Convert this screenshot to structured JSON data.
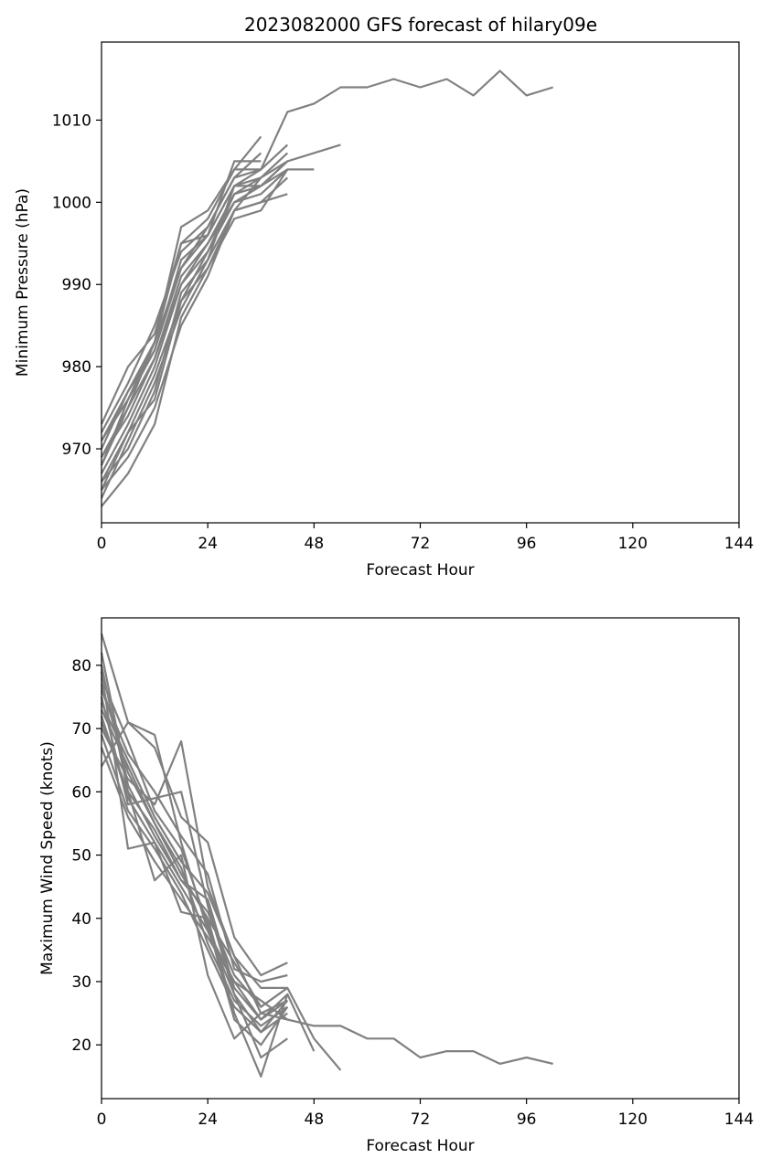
{
  "title": "2023082000 GFS forecast of hilary09e",
  "line_color": "#808080",
  "chart_data": [
    {
      "type": "line",
      "xlabel": "Forecast Hour",
      "ylabel": "Minimum Pressure (hPa)",
      "xlim": [
        0,
        144
      ],
      "ylim": [
        961,
        1019.5
      ],
      "xticks": [
        0,
        24,
        48,
        72,
        96,
        120,
        144
      ],
      "yticks": [
        970,
        980,
        990,
        1000,
        1010
      ],
      "grid": false,
      "legend": "none",
      "series": [
        {
          "x": [
            0,
            6,
            12,
            18,
            24,
            30,
            36,
            42,
            48,
            54,
            60,
            66,
            72,
            78,
            84,
            90,
            96,
            102
          ],
          "y": [
            971,
            976,
            983,
            992,
            997,
            1003,
            1004,
            1011,
            1012,
            1014,
            1014,
            1015,
            1014,
            1015,
            1013,
            1016,
            1013,
            1014
          ]
        },
        {
          "x": [
            0,
            6,
            12,
            18,
            24,
            30,
            36,
            42,
            48,
            54
          ],
          "y": [
            968,
            975,
            981,
            991,
            995,
            1001,
            1003,
            1005,
            1006,
            1007
          ]
        },
        {
          "x": [
            0,
            6,
            12,
            18,
            24,
            30,
            36,
            42,
            48
          ],
          "y": [
            965,
            972,
            979,
            988,
            994,
            1000,
            1002,
            1004,
            1004
          ]
        },
        {
          "x": [
            0,
            6,
            12,
            18,
            24,
            30,
            36
          ],
          "y": [
            969,
            975,
            983,
            997,
            999,
            1004,
            1008
          ]
        },
        {
          "x": [
            0,
            6,
            12,
            18,
            24,
            30,
            36
          ],
          "y": [
            973,
            980,
            984,
            995,
            996,
            1005,
            1005
          ]
        },
        {
          "x": [
            0,
            6,
            12,
            18,
            24,
            30,
            36,
            42
          ],
          "y": [
            963,
            967,
            973,
            986,
            992,
            998,
            999,
            1004
          ]
        },
        {
          "x": [
            0,
            6,
            12,
            18,
            24,
            30,
            36,
            42
          ],
          "y": [
            966,
            970,
            977,
            989,
            993,
            999,
            1000,
            1001
          ]
        },
        {
          "x": [
            0,
            6,
            12,
            18,
            24,
            30,
            36,
            42
          ],
          "y": [
            970,
            977,
            982,
            993,
            996,
            1002,
            1003,
            1006
          ]
        },
        {
          "x": [
            0,
            6,
            12,
            18,
            24,
            30,
            36,
            42
          ],
          "y": [
            967,
            973,
            980,
            990,
            994,
            1001,
            1002,
            1005
          ]
        },
        {
          "x": [
            0,
            6,
            12,
            18,
            24,
            30,
            36,
            42
          ],
          "y": [
            964,
            971,
            978,
            987,
            993,
            1002,
            1004,
            1007
          ]
        },
        {
          "x": [
            0,
            6,
            12,
            18,
            24,
            30,
            36
          ],
          "y": [
            972,
            978,
            985,
            994,
            997,
            1003,
            1006
          ]
        },
        {
          "x": [
            0,
            6,
            12,
            18,
            24,
            30,
            36,
            42
          ],
          "y": [
            969,
            974,
            981,
            990,
            995,
            1000,
            1001,
            1004
          ]
        },
        {
          "x": [
            0,
            6,
            12,
            18,
            24,
            30,
            36
          ],
          "y": [
            966,
            972,
            976,
            988,
            992,
            999,
            1003
          ]
        },
        {
          "x": [
            0,
            6,
            12,
            18,
            24,
            30,
            36,
            42
          ],
          "y": [
            968,
            976,
            982,
            992,
            996,
            1002,
            1002,
            1005
          ]
        },
        {
          "x": [
            0,
            6,
            12,
            18,
            24,
            30,
            36
          ],
          "y": [
            971,
            977,
            983,
            995,
            998,
            1004,
            1004
          ]
        },
        {
          "x": [
            0,
            6,
            12,
            18,
            24,
            30,
            36,
            42
          ],
          "y": [
            965,
            969,
            975,
            985,
            991,
            999,
            1000,
            1003
          ]
        }
      ]
    },
    {
      "type": "line",
      "xlabel": "Forecast Hour",
      "ylabel": "Maximum Wind Speed (knots)",
      "xlim": [
        0,
        144
      ],
      "ylim": [
        11.5,
        87.5
      ],
      "xticks": [
        0,
        24,
        48,
        72,
        96,
        120,
        144
      ],
      "yticks": [
        20,
        30,
        40,
        50,
        60,
        70,
        80
      ],
      "grid": false,
      "legend": "none",
      "series": [
        {
          "x": [
            0,
            6,
            12,
            18,
            24,
            30,
            36,
            42,
            48,
            54,
            60,
            66,
            72,
            78,
            84,
            90,
            96,
            102
          ],
          "y": [
            74,
            65,
            56,
            49,
            44,
            34,
            25,
            24,
            23,
            23,
            21,
            21,
            18,
            19,
            19,
            17,
            18,
            17
          ]
        },
        {
          "x": [
            0,
            6,
            12,
            18,
            24,
            30,
            36,
            42,
            48,
            54
          ],
          "y": [
            77,
            63,
            55,
            47,
            40,
            33,
            26,
            29,
            21,
            16
          ]
        },
        {
          "x": [
            0,
            6,
            12,
            18,
            24,
            30,
            36,
            42,
            48
          ],
          "y": [
            72,
            59,
            52,
            45,
            38,
            30,
            24,
            28,
            19
          ]
        },
        {
          "x": [
            0,
            6,
            12,
            18,
            24,
            30,
            36,
            42
          ],
          "y": [
            85,
            71,
            69,
            52,
            38,
            28,
            22,
            27
          ]
        },
        {
          "x": [
            0,
            6,
            12,
            18,
            24,
            30,
            36,
            42
          ],
          "y": [
            70,
            62,
            58,
            68,
            45,
            34,
            29,
            29
          ]
        },
        {
          "x": [
            0,
            6,
            12,
            18,
            24,
            30,
            36,
            42
          ],
          "y": [
            64,
            71,
            67,
            56,
            52,
            37,
            31,
            33
          ]
        },
        {
          "x": [
            0,
            6,
            12,
            18,
            24,
            30,
            36,
            42
          ],
          "y": [
            79,
            51,
            52,
            41,
            40,
            25,
            15,
            28
          ]
        },
        {
          "x": [
            0,
            6,
            12,
            18,
            24,
            30,
            36,
            42
          ],
          "y": [
            80,
            60,
            46,
            50,
            31,
            21,
            25,
            27
          ]
        },
        {
          "x": [
            0,
            6,
            12,
            18,
            24,
            30,
            36,
            42
          ],
          "y": [
            75,
            58,
            59,
            60,
            42,
            28,
            18,
            21
          ]
        },
        {
          "x": [
            0,
            6,
            12,
            18,
            24,
            30,
            36,
            42
          ],
          "y": [
            73,
            64,
            55,
            48,
            36,
            27,
            23,
            26
          ]
        },
        {
          "x": [
            0,
            6,
            12,
            18,
            24,
            30,
            36,
            42
          ],
          "y": [
            69,
            57,
            51,
            44,
            35,
            26,
            22,
            25
          ]
        },
        {
          "x": [
            0,
            6,
            12,
            18,
            24,
            30,
            36,
            42
          ],
          "y": [
            76,
            66,
            60,
            53,
            47,
            32,
            30,
            31
          ]
        },
        {
          "x": [
            0,
            6,
            12,
            18,
            24,
            30,
            36,
            42
          ],
          "y": [
            71,
            60,
            54,
            46,
            43,
            29,
            24,
            27
          ]
        },
        {
          "x": [
            0,
            6,
            12,
            18,
            24,
            30,
            36,
            42
          ],
          "y": [
            78,
            68,
            57,
            51,
            39,
            24,
            20,
            26
          ]
        },
        {
          "x": [
            0,
            6,
            12,
            18,
            24,
            30,
            36,
            42
          ],
          "y": [
            67,
            56,
            49,
            43,
            37,
            30,
            27,
            24
          ]
        },
        {
          "x": [
            0,
            6,
            12,
            18,
            24,
            30,
            36,
            42
          ],
          "y": [
            82,
            61,
            53,
            46,
            41,
            31,
            26,
            29
          ]
        }
      ]
    }
  ]
}
